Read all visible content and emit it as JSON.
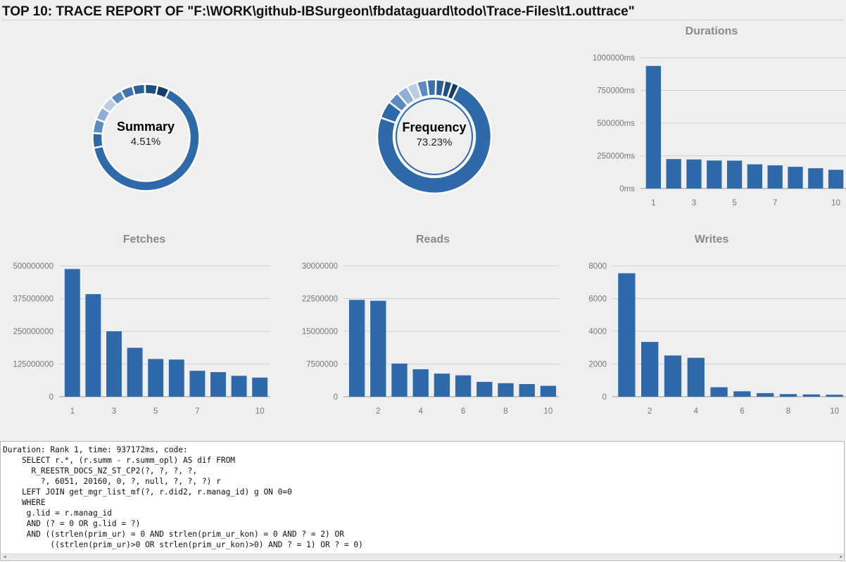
{
  "page": {
    "title": "TOP 10: TRACE REPORT OF \"F:\\WORK\\github-IBSurgeon\\fbdataguard\\todo\\Trace-Files\\t1.outtrace\""
  },
  "colors": {
    "bar": "#2e6aaa",
    "donut_palette": [
      "#2e6aaa",
      "#2e6aaa",
      "#5b8bc0",
      "#8fb0d6",
      "#b9cde4",
      "#5b8bc0",
      "#3b73ae",
      "#2a5f97",
      "#1f4e80",
      "#173d67"
    ]
  },
  "donuts": [
    {
      "label": "Summary",
      "percent": "4.51%",
      "values": [
        64.7,
        4.51,
        4.3,
        4.0,
        3.8,
        3.7,
        3.7,
        3.8,
        3.9,
        3.6
      ],
      "inner_ring": false
    },
    {
      "label": "Frequency",
      "percent": "73.23%",
      "values": [
        73.23,
        5.0,
        3.4,
        3.2,
        3.0,
        2.9,
        2.6,
        2.5,
        2.2,
        1.97
      ],
      "inner_ring": true
    }
  ],
  "chart_data": [
    {
      "type": "bar",
      "title": "Durations",
      "x": [
        1,
        2,
        3,
        4,
        5,
        6,
        7,
        8,
        9,
        10
      ],
      "x_tick_labels": [
        "1",
        "3",
        "5",
        "7",
        "10"
      ],
      "values": [
        937172,
        225000,
        222000,
        214000,
        213000,
        185000,
        177000,
        166000,
        155000,
        143000
      ],
      "y_ticks": [
        "0ms",
        "250000ms",
        "500000ms",
        "750000ms",
        "1000000ms"
      ],
      "ylim": [
        0,
        1000000
      ],
      "grid": true
    },
    {
      "type": "bar",
      "title": "Fetches",
      "x": [
        1,
        2,
        3,
        4,
        5,
        6,
        7,
        8,
        9,
        10
      ],
      "x_tick_labels": [
        "1",
        "3",
        "5",
        "7",
        "10"
      ],
      "values": [
        488000000,
        392000000,
        250000000,
        187000000,
        144000000,
        142000000,
        99000000,
        94000000,
        80000000,
        73000000
      ],
      "y_ticks": [
        "0",
        "125000000",
        "250000000",
        "375000000",
        "500000000"
      ],
      "ylim": [
        0,
        500000000
      ],
      "grid": true
    },
    {
      "type": "bar",
      "title": "Reads",
      "x": [
        1,
        2,
        3,
        4,
        5,
        6,
        7,
        8,
        9,
        10
      ],
      "x_tick_labels": [
        "2",
        "4",
        "6",
        "8",
        "10"
      ],
      "values": [
        22200000,
        22000000,
        7600000,
        6300000,
        5300000,
        4900000,
        3400000,
        3100000,
        2900000,
        2500000
      ],
      "y_ticks": [
        "0",
        "7500000",
        "15000000",
        "22500000",
        "30000000"
      ],
      "ylim": [
        0,
        30000000
      ],
      "grid": true
    },
    {
      "type": "bar",
      "title": "Writes",
      "x": [
        1,
        2,
        3,
        4,
        5,
        6,
        7,
        8,
        9,
        10
      ],
      "x_tick_labels": [
        "2",
        "4",
        "6",
        "8",
        "10"
      ],
      "values": [
        7550,
        3350,
        2520,
        2380,
        580,
        330,
        220,
        160,
        140,
        120
      ],
      "y_ticks": [
        "0",
        "2000",
        "4000",
        "6000",
        "8000"
      ],
      "ylim": [
        0,
        8000
      ],
      "grid": true
    }
  ],
  "code": {
    "lines": [
      "Duration: Rank 1, time: 937172ms, code:",
      "    SELECT r.*, (r.summ - r.summ_opl) AS dif FROM",
      "      R_REESTR_DOCS_NZ_ST_CP2(?, ?, ?, ?,",
      "        ?, 6051, 20160, 0, ?, null, ?, ?, ?) r",
      "    LEFT JOIN get_mgr_list_mf(?, r.did2, r.manag_id) g ON 0=0",
      "    WHERE",
      "     g.lid = r.manag_id",
      "     AND (? = 0 OR g.lid = ?)",
      "     AND ((strlen(prim_ur) = 0 AND strlen(prim_ur_kon) = 0 AND ? = 2) OR",
      "          ((strlen(prim_ur)>0 OR strlen(prim_ur_kon)>0) AND ? = 1) OR ? = 0)"
    ]
  }
}
